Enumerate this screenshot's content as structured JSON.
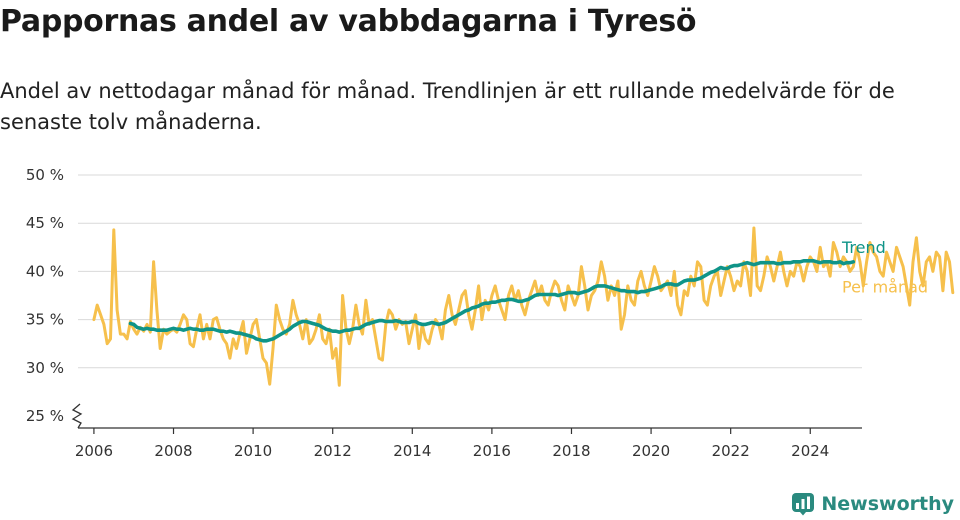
{
  "header": {
    "title": "Pappornas andel av vabbdagarna i Tyresö",
    "subtitle": "Andel av nettodagar månad för månad. Trendlinjen är ett rullande medelvärde för de senaste tolv månaderna."
  },
  "logo": {
    "text": "Newsworthy",
    "icon": "newsworthy-chart-icon",
    "color": "#2a8a7f"
  },
  "chart_data": {
    "type": "line",
    "xlim": [
      2005.6,
      2025.3
    ],
    "ylim": [
      25,
      50
    ],
    "x_ticks": [
      2006,
      2008,
      2010,
      2012,
      2014,
      2016,
      2018,
      2020,
      2022,
      2024
    ],
    "y_ticks": [
      25,
      30,
      35,
      40,
      45,
      50
    ],
    "y_tick_labels": [
      "25 %",
      "30 %",
      "35 %",
      "40 %",
      "45 %",
      "50 %"
    ],
    "axis_break": true,
    "grid": true,
    "legend": "inline-right",
    "series": [
      {
        "name": "Per månad",
        "color": "#f6c04c",
        "x_start": 2006.0,
        "step": 0.08333,
        "values": [
          35.0,
          36.5,
          35.5,
          34.5,
          32.5,
          33.0,
          44.3,
          36.0,
          33.5,
          33.5,
          33.0,
          34.8,
          34.0,
          33.5,
          34.2,
          33.8,
          34.5,
          33.7,
          41.0,
          36.0,
          32.0,
          34.0,
          33.5,
          33.8,
          34.0,
          33.7,
          34.5,
          35.5,
          35.0,
          32.5,
          32.2,
          34.0,
          35.5,
          33.0,
          34.5,
          33.0,
          35.0,
          35.2,
          34.0,
          33.0,
          32.5,
          31.0,
          33.0,
          32.0,
          33.5,
          34.8,
          31.5,
          33.0,
          34.5,
          35.0,
          33.0,
          31.0,
          30.5,
          28.3,
          32.0,
          36.5,
          35.0,
          34.0,
          33.5,
          34.5,
          37.0,
          35.5,
          34.5,
          33.0,
          35.0,
          32.5,
          33.0,
          34.0,
          35.5,
          33.0,
          32.5,
          34.0,
          31.0,
          32.0,
          28.2,
          37.5,
          34.0,
          32.5,
          34.0,
          36.5,
          34.5,
          33.5,
          37.0,
          34.5,
          35.0,
          33.0,
          31.0,
          30.8,
          34.5,
          36.0,
          35.5,
          34.0,
          35.0,
          34.5,
          34.8,
          32.5,
          34.0,
          35.5,
          32.0,
          34.5,
          33.0,
          32.5,
          34.0,
          35.0,
          34.5,
          33.0,
          36.0,
          37.5,
          35.5,
          34.5,
          36.0,
          37.5,
          38.0,
          35.5,
          34.0,
          36.0,
          38.5,
          35.0,
          37.0,
          36.0,
          37.5,
          38.5,
          37.0,
          36.0,
          35.0,
          37.5,
          38.5,
          37.0,
          38.0,
          36.5,
          35.5,
          37.0,
          38.0,
          39.0,
          37.5,
          38.5,
          37.0,
          36.5,
          38.0,
          39.0,
          38.5,
          37.0,
          36.0,
          38.5,
          37.5,
          36.5,
          37.5,
          40.5,
          38.5,
          36.0,
          37.5,
          38.0,
          39.0,
          41.0,
          39.5,
          37.0,
          38.5,
          37.5,
          39.0,
          34.0,
          35.5,
          38.5,
          37.0,
          36.5,
          39.0,
          40.0,
          38.5,
          37.5,
          39.0,
          40.5,
          39.5,
          38.0,
          38.5,
          39.0,
          37.5,
          40.0,
          36.5,
          35.5,
          38.0,
          37.5,
          39.5,
          38.5,
          41.0,
          40.5,
          37.0,
          36.5,
          38.5,
          39.5,
          40.0,
          37.5,
          39.0,
          40.5,
          39.5,
          38.0,
          39.0,
          38.5,
          41.0,
          40.0,
          37.5,
          44.5,
          38.5,
          38.0,
          39.5,
          41.5,
          40.5,
          39.0,
          40.5,
          42.0,
          40.0,
          38.5,
          40.0,
          39.5,
          41.0,
          40.5,
          39.0,
          40.5,
          41.5,
          41.0,
          40.0,
          42.5,
          40.5,
          41.0,
          39.5,
          43.0,
          42.0,
          40.5,
          41.5,
          41.0,
          40.0,
          40.5,
          42.5,
          41.0,
          38.5,
          41.0,
          43.0,
          42.0,
          41.5,
          40.0,
          39.5,
          42.0,
          41.0,
          40.0,
          42.5,
          41.5,
          40.5,
          38.5,
          36.5,
          41.0,
          43.5,
          40.0,
          38.5,
          41.0,
          41.5,
          40.0,
          42.0,
          41.5,
          38.0,
          42.0,
          41.0,
          37.8
        ]
      },
      {
        "name": "Trend",
        "color": "#0f9488",
        "x_start": 2006.9167,
        "step": 0.08333,
        "values": [
          34.6,
          34.5,
          34.2,
          34.1,
          34.0,
          34.1,
          34.0,
          34.0,
          33.9,
          33.9,
          33.9,
          33.9,
          34.0,
          34.1,
          34.0,
          34.0,
          33.9,
          34.0,
          34.1,
          34.0,
          34.0,
          33.9,
          33.9,
          34.0,
          34.0,
          34.0,
          33.9,
          33.8,
          33.8,
          33.7,
          33.8,
          33.7,
          33.6,
          33.6,
          33.5,
          33.4,
          33.3,
          33.2,
          33.0,
          32.9,
          32.8,
          32.8,
          32.9,
          33.0,
          33.2,
          33.4,
          33.6,
          33.8,
          34.0,
          34.3,
          34.5,
          34.7,
          34.8,
          34.8,
          34.7,
          34.6,
          34.5,
          34.4,
          34.2,
          34.0,
          33.9,
          33.8,
          33.8,
          33.7,
          33.8,
          33.9,
          33.9,
          34.0,
          34.1,
          34.1,
          34.3,
          34.5,
          34.6,
          34.7,
          34.8,
          34.9,
          34.9,
          34.8,
          34.8,
          34.8,
          34.9,
          34.8,
          34.7,
          34.7,
          34.7,
          34.8,
          34.8,
          34.6,
          34.5,
          34.5,
          34.6,
          34.7,
          34.6,
          34.5,
          34.6,
          34.7,
          34.9,
          35.1,
          35.3,
          35.5,
          35.7,
          35.9,
          36.0,
          36.2,
          36.3,
          36.4,
          36.6,
          36.7,
          36.7,
          36.8,
          36.8,
          36.9,
          37.0,
          37.0,
          37.1,
          37.1,
          37.0,
          36.9,
          36.9,
          37.0,
          37.1,
          37.3,
          37.5,
          37.6,
          37.6,
          37.6,
          37.6,
          37.6,
          37.6,
          37.5,
          37.6,
          37.7,
          37.8,
          37.8,
          37.8,
          37.7,
          37.8,
          37.9,
          38.0,
          38.2,
          38.4,
          38.5,
          38.5,
          38.5,
          38.4,
          38.3,
          38.2,
          38.1,
          38.0,
          38.0,
          37.9,
          37.9,
          37.9,
          37.8,
          37.9,
          37.9,
          38.0,
          38.1,
          38.2,
          38.3,
          38.4,
          38.6,
          38.7,
          38.7,
          38.6,
          38.6,
          38.8,
          39.0,
          39.1,
          39.1,
          39.1,
          39.2,
          39.3,
          39.5,
          39.7,
          39.9,
          40.0,
          40.2,
          40.4,
          40.3,
          40.3,
          40.5,
          40.6,
          40.6,
          40.7,
          40.8,
          40.9,
          40.8,
          40.7,
          40.8,
          40.9,
          40.9,
          40.9,
          40.9,
          40.9,
          40.8,
          40.8,
          40.9,
          40.9,
          40.9,
          41.0,
          41.0,
          41.0,
          41.1,
          41.1,
          41.1,
          41.1,
          41.0,
          40.9,
          41.0,
          41.0,
          41.0,
          40.9,
          40.9,
          41.0,
          40.8,
          40.9,
          40.9,
          41.0
        ]
      }
    ]
  }
}
